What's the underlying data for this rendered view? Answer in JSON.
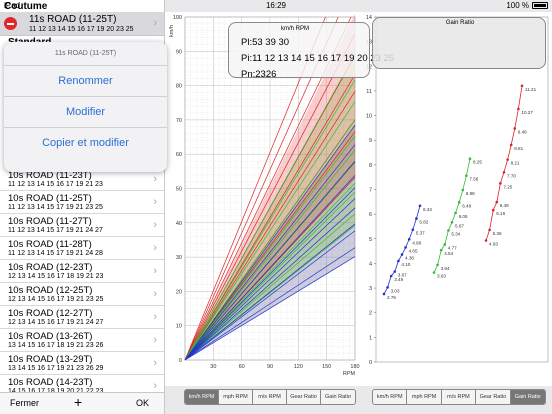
{
  "statusbar": {
    "carrier": "iPad",
    "time": "16:29",
    "battery": "100 %"
  },
  "sidebar": {
    "group_title": "Coutume",
    "selected": {
      "name": "11s ROAD (11-25T)",
      "cogs": "11 12 13 14 15 16 17 19 20 23 25"
    },
    "standard_title": "Standard",
    "menu": {
      "title": "11s ROAD (11-25T)",
      "rename": "Renommer",
      "modify": "Modifier",
      "copy_modify": "Copier et modifier"
    },
    "items": [
      {
        "name": "10s ROAD (11-23T)",
        "cogs": "11 12 13 14 15 16 17 19 21 23"
      },
      {
        "name": "10s ROAD (11-25T)",
        "cogs": "11 12 13 14 15 17 19 21 23 25"
      },
      {
        "name": "10s ROAD (11-27T)",
        "cogs": "11 12 13 14 15 17 19 21 24 27"
      },
      {
        "name": "10s ROAD (11-28T)",
        "cogs": "11 12 13 14 15 17 19 21 24 28"
      },
      {
        "name": "10s ROAD (12-23T)",
        "cogs": "12 13 14 15 16 17 18 19 21 23"
      },
      {
        "name": "10s ROAD (12-25T)",
        "cogs": "12 13 14 15 16 17 19 21 23 25"
      },
      {
        "name": "10s ROAD (12-27T)",
        "cogs": "12 13 14 15 16 17 19 21 24 27"
      },
      {
        "name": "10s ROAD (13-26T)",
        "cogs": "13 14 15 16 17 18 19 21 23 26"
      },
      {
        "name": "10s ROAD (13-29T)",
        "cogs": "13 14 15 16 17 19 21 23 26 29"
      },
      {
        "name": "10s ROAD (14-23T)",
        "cogs": "14 15 16 17 18 19 20 21 22 23"
      }
    ],
    "footer": {
      "close": "Fermer",
      "add": "+",
      "ok": "OK"
    }
  },
  "chart_left": {
    "ylabel": "km/h",
    "xlabel": "RPM",
    "x_ticks": [
      "30",
      "60",
      "90",
      "120",
      "150",
      "180"
    ],
    "y_ticks": [
      "0",
      "10",
      "20",
      "30",
      "40",
      "50",
      "60",
      "70",
      "80",
      "90",
      "100"
    ],
    "info": {
      "header": "km/h RPM",
      "pl": "Pl:53 39 30",
      "pi": "Pi:11 12 13 14 15 16 17 19 20 23 25",
      "pn": "Pn:2326"
    }
  },
  "chart_right": {
    "title": "Gain Ratio",
    "y_ticks": [
      "0",
      "1",
      "2",
      "3",
      "4",
      "5",
      "6",
      "7",
      "8",
      "9",
      "10",
      "11",
      "12",
      "13",
      "14"
    ]
  },
  "tabs_left": [
    "km/h RPM",
    "mph RPM",
    "m/s RPM",
    "Gear Ratio",
    "Gain Ratio"
  ],
  "tabs_right": [
    "km/h RPM",
    "mph RPM",
    "m/s RPM",
    "Gear Ratio",
    "Gain Ratio"
  ],
  "active_left": 0,
  "active_right": 4,
  "colors": {
    "small": "#2233cc",
    "middle": "#33bb33",
    "big": "#dd2222"
  },
  "chart_data": {
    "type": "scatter",
    "title": "Gain Ratio",
    "ylim": [
      0,
      14
    ],
    "series": [
      {
        "color": "#2233cc",
        "labels": [
          "2.76",
          "3.03",
          "3.49",
          "3.67",
          "4.10",
          "4.36",
          "4.65",
          "4.98",
          "5.37",
          "5.82",
          "6.34"
        ],
        "values": [
          2.76,
          3.03,
          3.49,
          3.67,
          4.1,
          4.36,
          4.65,
          4.98,
          5.37,
          5.82,
          6.34
        ]
      },
      {
        "color": "#33bb33",
        "labels": [
          "3.63",
          "3.94",
          "4.54",
          "4.77",
          "5.34",
          "5.67",
          "6.05",
          "6.48",
          "6.98",
          "7.56",
          "8.25"
        ],
        "values": [
          3.63,
          3.94,
          4.54,
          4.77,
          5.34,
          5.67,
          6.05,
          6.48,
          6.98,
          7.56,
          8.25
        ]
      },
      {
        "color": "#dd2222",
        "labels": [
          "4.93",
          "5.36",
          "6.16",
          "6.49",
          "7.25",
          "7.70",
          "8.21",
          "8.81",
          "9.48",
          "10.27",
          "11.21"
        ],
        "values": [
          4.93,
          5.36,
          6.16,
          6.49,
          7.25,
          7.7,
          8.21,
          8.81,
          9.48,
          10.27,
          11.21
        ]
      }
    ]
  }
}
